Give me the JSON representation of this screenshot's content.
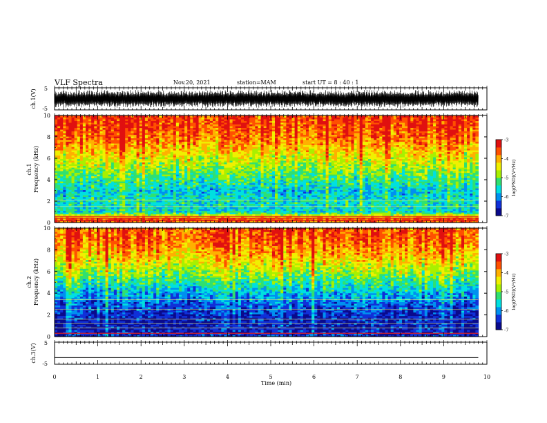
{
  "header": {
    "title": "VLF Spectra",
    "date": "Nov.20, 2021",
    "station": "station=MAM",
    "start": "start  UT =   8 : 40 : 1"
  },
  "colors": {
    "spectrogram_palette": [
      "#0a0a8c",
      "#1030d8",
      "#0090f0",
      "#00e0e0",
      "#30e070",
      "#a8f000",
      "#f0f000",
      "#ffb000",
      "#ff5000",
      "#e01010"
    ],
    "trace": "#000000",
    "frame": "#000000"
  },
  "chart_data": [
    {
      "type": "line",
      "name": "ch.1 waveform",
      "ylabel": "ch.1(V)",
      "ylim": [
        -5,
        5
      ],
      "yticks": [
        "5",
        "-5"
      ],
      "xlim": [
        0,
        10
      ],
      "data_extent_min": 9.8,
      "signal": "dense oscillating waveform spanning approx. -4 to +4 V"
    },
    {
      "type": "heatmap",
      "name": "ch.1 spectrogram",
      "ylabel": "Frequency (kHz)",
      "channel_label": "ch.1",
      "ylim": [
        0,
        10
      ],
      "yticks": [
        "0",
        "2",
        "4",
        "6",
        "8",
        "10"
      ],
      "xlim": [
        0,
        10
      ],
      "data_extent_min": 9.8,
      "colorbar": {
        "label": "log(PSD)(V²/Hz)",
        "range": [
          -7,
          -3
        ],
        "ticks": [
          "-3",
          "-4",
          "-5",
          "-6",
          "-7"
        ]
      },
      "profile_khz": [
        [
          0,
          -3.8
        ],
        [
          0.3,
          -3.4
        ],
        [
          0.6,
          -4.2
        ],
        [
          1.0,
          -5.6
        ],
        [
          2.0,
          -5.5
        ],
        [
          3.0,
          -5.7
        ],
        [
          4.0,
          -5.3
        ],
        [
          5.0,
          -4.9
        ],
        [
          6.0,
          -4.5
        ],
        [
          7.0,
          -4.1
        ],
        [
          8.0,
          -3.7
        ],
        [
          9.0,
          -3.5
        ],
        [
          10.0,
          -3.4
        ]
      ],
      "lines_khz": [
        0.2,
        0.4,
        0.55,
        1.5,
        2.1
      ]
    },
    {
      "type": "heatmap",
      "name": "ch.2 spectrogram",
      "ylabel": "Frequency (kHz)",
      "channel_label": "ch.2",
      "ylim": [
        0,
        10
      ],
      "yticks": [
        "0",
        "2",
        "4",
        "6",
        "8",
        "10"
      ],
      "xlim": [
        0,
        10
      ],
      "data_extent_min": 9.8,
      "colorbar": {
        "label": "log(PSD)(V²/Hz)",
        "range": [
          -7,
          -3
        ],
        "ticks": [
          "-3",
          "-4",
          "-5",
          "-6",
          "-7"
        ]
      },
      "profile_khz": [
        [
          0,
          -6.4
        ],
        [
          0.5,
          -6.6
        ],
        [
          1.0,
          -6.6
        ],
        [
          2.0,
          -6.5
        ],
        [
          3.0,
          -6.2
        ],
        [
          4.0,
          -5.8
        ],
        [
          5.0,
          -5.3
        ],
        [
          6.0,
          -4.8
        ],
        [
          7.0,
          -4.3
        ],
        [
          8.0,
          -3.9
        ],
        [
          9.0,
          -3.6
        ],
        [
          10.0,
          -3.5
        ]
      ],
      "lines_khz": [
        0.3,
        0.8,
        1.2,
        1.6,
        2.5,
        3.4
      ]
    },
    {
      "type": "line",
      "name": "ch.3 waveform",
      "ylabel": "ch.3(V)",
      "ylim": [
        -5,
        5
      ],
      "yticks": [
        "5",
        "-5"
      ],
      "xlim": [
        0,
        10
      ],
      "xlabel": "Time (min)",
      "xticks": [
        "0",
        "1",
        "2",
        "3",
        "4",
        "5",
        "6",
        "7",
        "8",
        "9",
        "10"
      ],
      "data_extent_min": 9.8,
      "constant_value": -2
    }
  ]
}
